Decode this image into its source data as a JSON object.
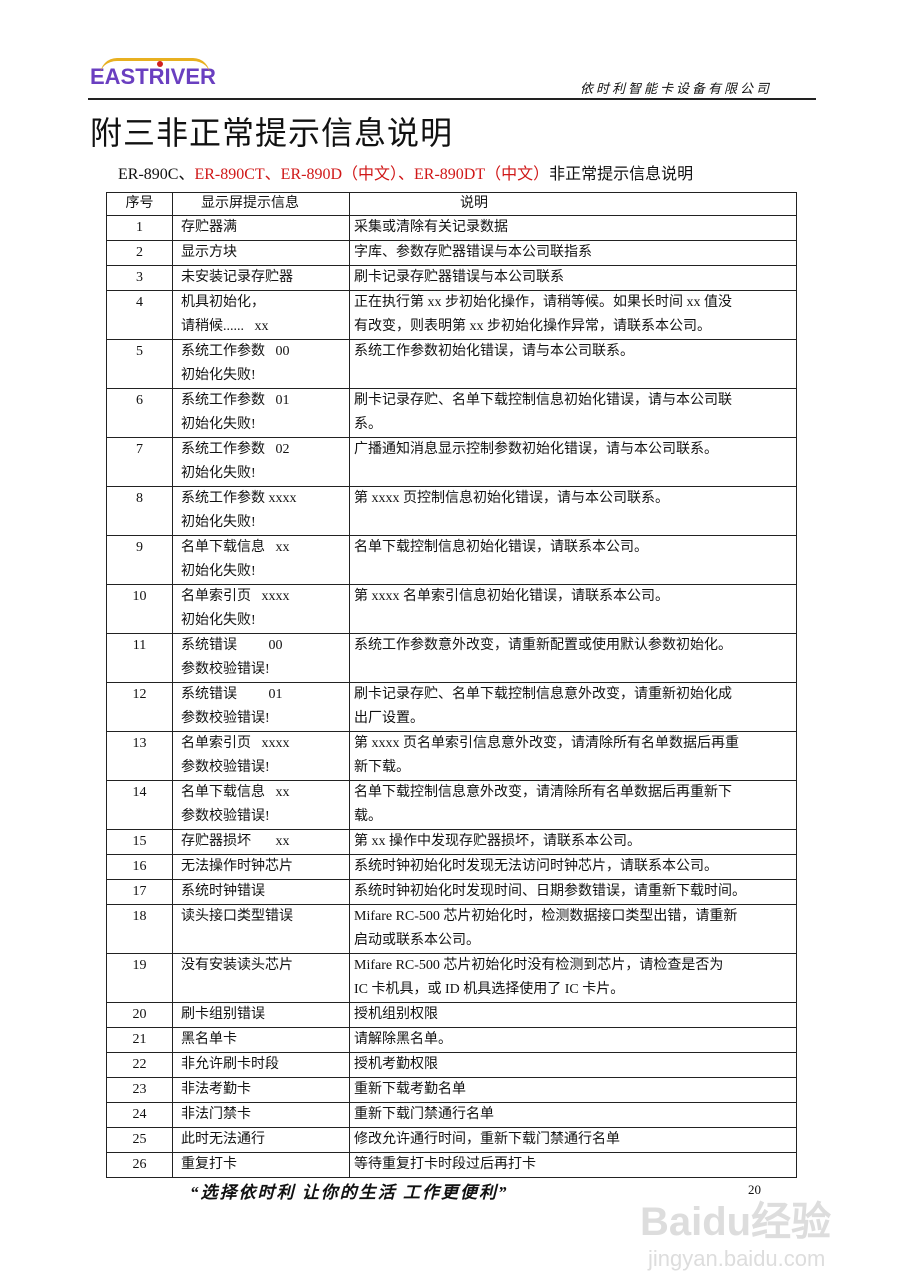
{
  "header": {
    "logo": "EASTRIVER",
    "company": "依时利智能卡设备有限公司"
  },
  "title": "附三非正常提示信息说明",
  "subtitle": {
    "parts": [
      "ER-890C、",
      "ER-890CT、ER-890D（中文）、ER-890DT（中文）",
      "非正常提示信息说明"
    ]
  },
  "colors": {
    "red": "#d01818",
    "logo": "#6a3fc0"
  },
  "table": {
    "headers": [
      "序号",
      "显示屏提示信息",
      "说明"
    ],
    "rows": [
      {
        "no": "1",
        "display": [
          "存贮器满"
        ],
        "desc": [
          "采集或清除有关记录数据"
        ]
      },
      {
        "no": "2",
        "display": [
          "显示方块"
        ],
        "desc": [
          "字库、参数存贮器错误与本公司联指系"
        ]
      },
      {
        "no": "3",
        "display": [
          "未安装记录存贮器"
        ],
        "desc": [
          "刷卡记录存贮器错误与本公司联系"
        ]
      },
      {
        "no": "4",
        "display": [
          "机具初始化，",
          "请稍候......   xx"
        ],
        "desc": [
          "正在执行第 xx 步初始化操作，请稍等候。如果长时间 xx 值没",
          "有改变，则表明第 xx 步初始化操作异常，请联系本公司。"
        ]
      },
      {
        "no": "5",
        "display": [
          "系统工作参数   00",
          "初始化失败!"
        ],
        "desc": [
          "系统工作参数初始化错误，请与本公司联系。"
        ]
      },
      {
        "no": "6",
        "display": [
          "系统工作参数   01",
          "初始化失败!"
        ],
        "desc": [
          "刷卡记录存贮、名单下载控制信息初始化错误，请与本公司联",
          "系。"
        ]
      },
      {
        "no": "7",
        "display": [
          "系统工作参数   02",
          "初始化失败!"
        ],
        "desc": [
          "广播通知消息显示控制参数初始化错误，请与本公司联系。"
        ]
      },
      {
        "no": "8",
        "display": [
          "系统工作参数 xxxx",
          "初始化失败!"
        ],
        "desc": [
          "第 xxxx 页控制信息初始化错误，请与本公司联系。"
        ]
      },
      {
        "no": "9",
        "display": [
          "名单下载信息   xx",
          "初始化失败!"
        ],
        "desc": [
          "名单下载控制信息初始化错误，请联系本公司。"
        ]
      },
      {
        "no": "10",
        "display": [
          "名单索引页   xxxx",
          "初始化失败!"
        ],
        "desc": [
          "第 xxxx 名单索引信息初始化错误，请联系本公司。"
        ]
      },
      {
        "no": "11",
        "display": [
          "系统错误         00",
          "参数校验错误!"
        ],
        "desc": [
          "系统工作参数意外改变，请重新配置或使用默认参数初始化。"
        ]
      },
      {
        "no": "12",
        "display": [
          "系统错误         01",
          "参数校验错误!"
        ],
        "desc": [
          "刷卡记录存贮、名单下载控制信息意外改变，请重新初始化成",
          "出厂设置。"
        ]
      },
      {
        "no": "13",
        "display": [
          "名单索引页   xxxx",
          "参数校验错误!"
        ],
        "desc": [
          "第 xxxx 页名单索引信息意外改变，请清除所有名单数据后再重",
          "新下载。"
        ]
      },
      {
        "no": "14",
        "display": [
          "名单下载信息   xx",
          "参数校验错误!"
        ],
        "desc": [
          "名单下载控制信息意外改变，请清除所有名单数据后再重新下",
          "载。"
        ]
      },
      {
        "no": "15",
        "display": [
          "存贮器损坏       xx"
        ],
        "desc": [
          "第 xx 操作中发现存贮器损坏，请联系本公司。"
        ]
      },
      {
        "no": "16",
        "display": [
          "无法操作时钟芯片"
        ],
        "desc": [
          "系统时钟初始化时发现无法访问时钟芯片，请联系本公司。"
        ]
      },
      {
        "no": "17",
        "display": [
          "系统时钟错误"
        ],
        "desc": [
          "系统时钟初始化时发现时间、日期参数错误，请重新下载时间。"
        ]
      },
      {
        "no": "18",
        "display": [
          "读头接口类型错误"
        ],
        "desc": [
          "Mifare RC-500 芯片初始化时，检测数据接口类型出错，请重新",
          "启动或联系本公司。"
        ]
      },
      {
        "no": "19",
        "display": [
          "没有安装读头芯片"
        ],
        "desc": [
          "Mifare RC-500 芯片初始化时没有检测到芯片，请检查是否为",
          "IC 卡机具，或 ID 机具选择使用了 IC 卡片。"
        ]
      },
      {
        "no": "20",
        "display": [
          "刷卡组别错误"
        ],
        "desc": [
          "授机组别权限"
        ]
      },
      {
        "no": "21",
        "display": [
          "黑名单卡"
        ],
        "desc": [
          "请解除黑名单。"
        ]
      },
      {
        "no": "22",
        "display": [
          "非允许刷卡时段"
        ],
        "desc": [
          "授机考勤权限"
        ]
      },
      {
        "no": "23",
        "display": [
          "非法考勤卡"
        ],
        "desc": [
          "重新下载考勤名单"
        ]
      },
      {
        "no": "24",
        "display": [
          "非法门禁卡"
        ],
        "desc": [
          "重新下载门禁通行名单"
        ]
      },
      {
        "no": "25",
        "display": [
          "此时无法通行"
        ],
        "desc": [
          "修改允许通行时间，重新下载门禁通行名单"
        ]
      },
      {
        "no": "26",
        "display": [
          "重复打卡"
        ],
        "desc": [
          "等待重复打卡时段过后再打卡"
        ]
      }
    ]
  },
  "footer": {
    "slogan": "“选择依时利   让你的生活   工作更便利”",
    "page": "20"
  },
  "watermark": {
    "brand": "Baidu经验",
    "url": "jingyan.baidu.com"
  }
}
